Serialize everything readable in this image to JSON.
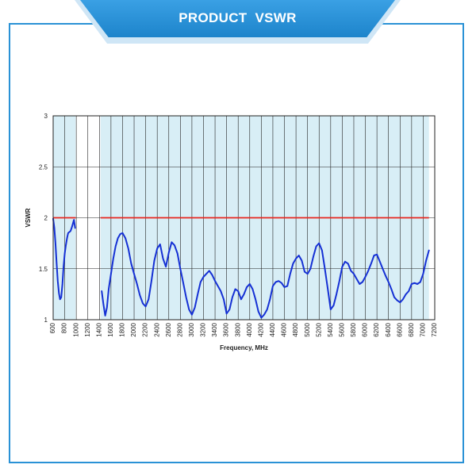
{
  "header": {
    "title": "PRODUCT  VSWR"
  },
  "colors": {
    "accent": "#2a92d6",
    "plot_background": "#d8eef6",
    "gap_background": "#ffffff",
    "grid": "#222222",
    "limit_line": "#e8261e",
    "series": "#1530d4"
  },
  "chart_data": {
    "type": "line",
    "title": "",
    "xlabel": "Frequency, MHz",
    "ylabel": "VSWR",
    "xlim": [
      600,
      7200
    ],
    "ylim": [
      1,
      3
    ],
    "grid": true,
    "legend": "none",
    "x_ticks": [
      600,
      800,
      1000,
      1200,
      1400,
      1600,
      1800,
      2000,
      2200,
      2400,
      2600,
      2800,
      3000,
      3200,
      3400,
      3600,
      3800,
      4000,
      4200,
      4400,
      4600,
      4800,
      5000,
      5200,
      5400,
      5600,
      5800,
      6000,
      6200,
      6400,
      6600,
      6800,
      7000,
      7200
    ],
    "x_tick_labels": [
      "600",
      "800",
      "1000",
      "1200",
      "1400",
      "1600",
      "1800",
      "2000",
      "2200",
      "2400",
      "2600",
      "2800",
      "3000",
      "3200",
      "3400",
      "3600",
      "3800",
      "4000",
      "4200",
      "4400",
      "4600",
      "4800",
      "5000",
      "5200",
      "5400",
      "5600",
      "5800",
      "6000",
      "6200",
      "6400",
      "6600",
      "6800",
      "7000",
      "7200"
    ],
    "y_ticks": [
      1,
      1.5,
      2,
      2.5,
      3
    ],
    "y_tick_labels": [
      "1",
      "1.5",
      "2",
      "2.5",
      "3"
    ],
    "shaded_bands": [
      [
        600,
        990
      ],
      [
        1420,
        7100
      ]
    ],
    "limit_line": {
      "value": 2,
      "segments": [
        [
          600,
          990
        ],
        [
          1420,
          7100
        ]
      ]
    },
    "series": [
      {
        "segments": [
          [
            [
              600,
              1.99
            ],
            [
              620,
              1.9
            ],
            [
              640,
              1.75
            ],
            [
              660,
              1.55
            ],
            [
              680,
              1.38
            ],
            [
              700,
              1.26
            ],
            [
              720,
              1.2
            ],
            [
              740,
              1.22
            ],
            [
              760,
              1.35
            ],
            [
              780,
              1.52
            ],
            [
              800,
              1.65
            ],
            [
              820,
              1.73
            ],
            [
              840,
              1.8
            ],
            [
              860,
              1.85
            ],
            [
              880,
              1.86
            ],
            [
              900,
              1.87
            ],
            [
              920,
              1.9
            ],
            [
              940,
              1.94
            ],
            [
              960,
              1.98
            ],
            [
              980,
              1.9
            ]
          ],
          [
            [
              1440,
              1.28
            ],
            [
              1470,
              1.15
            ],
            [
              1500,
              1.04
            ],
            [
              1530,
              1.12
            ],
            [
              1560,
              1.3
            ],
            [
              1600,
              1.45
            ],
            [
              1640,
              1.6
            ],
            [
              1680,
              1.72
            ],
            [
              1720,
              1.8
            ],
            [
              1760,
              1.84
            ],
            [
              1800,
              1.85
            ],
            [
              1850,
              1.8
            ],
            [
              1900,
              1.7
            ],
            [
              1950,
              1.55
            ],
            [
              2000,
              1.45
            ],
            [
              2050,
              1.35
            ],
            [
              2100,
              1.24
            ],
            [
              2150,
              1.16
            ],
            [
              2200,
              1.13
            ],
            [
              2250,
              1.2
            ],
            [
              2300,
              1.38
            ],
            [
              2350,
              1.58
            ],
            [
              2400,
              1.7
            ],
            [
              2450,
              1.74
            ],
            [
              2500,
              1.6
            ],
            [
              2550,
              1.52
            ],
            [
              2600,
              1.66
            ],
            [
              2650,
              1.76
            ],
            [
              2700,
              1.73
            ],
            [
              2750,
              1.65
            ],
            [
              2800,
              1.5
            ],
            [
              2850,
              1.36
            ],
            [
              2900,
              1.22
            ],
            [
              2950,
              1.1
            ],
            [
              3000,
              1.05
            ],
            [
              3050,
              1.12
            ],
            [
              3100,
              1.25
            ],
            [
              3150,
              1.37
            ],
            [
              3200,
              1.42
            ],
            [
              3250,
              1.45
            ],
            [
              3300,
              1.48
            ],
            [
              3350,
              1.44
            ],
            [
              3400,
              1.38
            ],
            [
              3450,
              1.33
            ],
            [
              3500,
              1.28
            ],
            [
              3550,
              1.2
            ],
            [
              3600,
              1.06
            ],
            [
              3650,
              1.1
            ],
            [
              3700,
              1.22
            ],
            [
              3750,
              1.3
            ],
            [
              3800,
              1.28
            ],
            [
              3850,
              1.2
            ],
            [
              3900,
              1.25
            ],
            [
              3950,
              1.32
            ],
            [
              4000,
              1.35
            ],
            [
              4050,
              1.3
            ],
            [
              4100,
              1.2
            ],
            [
              4150,
              1.08
            ],
            [
              4200,
              1.02
            ],
            [
              4250,
              1.05
            ],
            [
              4300,
              1.1
            ],
            [
              4350,
              1.2
            ],
            [
              4400,
              1.33
            ],
            [
              4450,
              1.37
            ],
            [
              4500,
              1.38
            ],
            [
              4550,
              1.36
            ],
            [
              4600,
              1.32
            ],
            [
              4650,
              1.33
            ],
            [
              4700,
              1.45
            ],
            [
              4750,
              1.55
            ],
            [
              4800,
              1.6
            ],
            [
              4850,
              1.63
            ],
            [
              4900,
              1.58
            ],
            [
              4950,
              1.47
            ],
            [
              5000,
              1.45
            ],
            [
              5050,
              1.5
            ],
            [
              5100,
              1.62
            ],
            [
              5150,
              1.72
            ],
            [
              5200,
              1.75
            ],
            [
              5250,
              1.68
            ],
            [
              5300,
              1.5
            ],
            [
              5350,
              1.3
            ],
            [
              5400,
              1.1
            ],
            [
              5450,
              1.14
            ],
            [
              5500,
              1.25
            ],
            [
              5550,
              1.38
            ],
            [
              5600,
              1.52
            ],
            [
              5650,
              1.57
            ],
            [
              5700,
              1.55
            ],
            [
              5750,
              1.48
            ],
            [
              5800,
              1.45
            ],
            [
              5850,
              1.4
            ],
            [
              5900,
              1.35
            ],
            [
              5950,
              1.37
            ],
            [
              6000,
              1.42
            ],
            [
              6050,
              1.48
            ],
            [
              6100,
              1.55
            ],
            [
              6150,
              1.63
            ],
            [
              6200,
              1.64
            ],
            [
              6250,
              1.57
            ],
            [
              6300,
              1.5
            ],
            [
              6350,
              1.43
            ],
            [
              6400,
              1.37
            ],
            [
              6450,
              1.3
            ],
            [
              6500,
              1.22
            ],
            [
              6550,
              1.19
            ],
            [
              6600,
              1.17
            ],
            [
              6650,
              1.2
            ],
            [
              6700,
              1.25
            ],
            [
              6750,
              1.28
            ],
            [
              6800,
              1.35
            ],
            [
              6850,
              1.36
            ],
            [
              6900,
              1.35
            ],
            [
              6950,
              1.37
            ],
            [
              7000,
              1.45
            ],
            [
              7050,
              1.58
            ],
            [
              7100,
              1.68
            ]
          ]
        ]
      }
    ]
  }
}
